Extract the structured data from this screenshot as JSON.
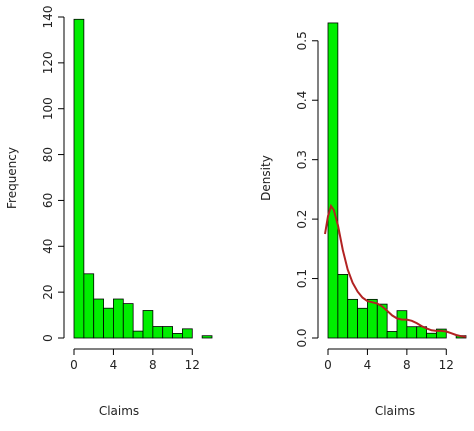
{
  "chart_data": [
    {
      "type": "bar",
      "xlabel": "Claims",
      "ylabel": "Frequency",
      "bin_width": 1,
      "bins": [
        {
          "x0": 0,
          "x1": 1,
          "value": 139
        },
        {
          "x0": 1,
          "x1": 2,
          "value": 28
        },
        {
          "x0": 2,
          "x1": 3,
          "value": 17
        },
        {
          "x0": 3,
          "x1": 4,
          "value": 13
        },
        {
          "x0": 4,
          "x1": 5,
          "value": 17
        },
        {
          "x0": 5,
          "x1": 6,
          "value": 15
        },
        {
          "x0": 6,
          "x1": 7,
          "value": 3
        },
        {
          "x0": 7,
          "x1": 8,
          "value": 12
        },
        {
          "x0": 8,
          "x1": 9,
          "value": 5
        },
        {
          "x0": 9,
          "x1": 10,
          "value": 5
        },
        {
          "x0": 10,
          "x1": 11,
          "value": 2
        },
        {
          "x0": 11,
          "x1": 12,
          "value": 4
        },
        {
          "x0": 12,
          "x1": 13,
          "value": 0
        },
        {
          "x0": 13,
          "x1": 14,
          "value": 1
        }
      ],
      "x_ticks": [
        0,
        4,
        8,
        12
      ],
      "y_ticks": [
        0,
        20,
        40,
        60,
        80,
        100,
        120,
        140
      ],
      "xlim": [
        0,
        14
      ],
      "ylim": [
        0,
        140
      ],
      "bar_color": "#00ee00",
      "bar_edge_color": "#000000"
    },
    {
      "type": "bar",
      "xlabel": "Claims",
      "ylabel": "Density",
      "bin_width": 1,
      "bins": [
        {
          "x0": 0,
          "x1": 1,
          "value": 0.53
        },
        {
          "x0": 1,
          "x1": 2,
          "value": 0.107
        },
        {
          "x0": 2,
          "x1": 3,
          "value": 0.065
        },
        {
          "x0": 3,
          "x1": 4,
          "value": 0.05
        },
        {
          "x0": 4,
          "x1": 5,
          "value": 0.065
        },
        {
          "x0": 5,
          "x1": 6,
          "value": 0.057
        },
        {
          "x0": 6,
          "x1": 7,
          "value": 0.011
        },
        {
          "x0": 7,
          "x1": 8,
          "value": 0.046
        },
        {
          "x0": 8,
          "x1": 9,
          "value": 0.019
        },
        {
          "x0": 9,
          "x1": 10,
          "value": 0.019
        },
        {
          "x0": 10,
          "x1": 11,
          "value": 0.008
        },
        {
          "x0": 11,
          "x1": 12,
          "value": 0.015
        },
        {
          "x0": 12,
          "x1": 13,
          "value": 0.0
        },
        {
          "x0": 13,
          "x1": 14,
          "value": 0.004
        }
      ],
      "density_curve": {
        "color": "#b22222",
        "x": [
          -0.3,
          0,
          0.3,
          0.6,
          1,
          1.5,
          2,
          2.5,
          3,
          3.5,
          4,
          4.5,
          5,
          5.5,
          6,
          6.5,
          7,
          7.5,
          8,
          8.5,
          9,
          9.5,
          10,
          10.5,
          11,
          11.5,
          12,
          12.5,
          13,
          13.5,
          14
        ],
        "y": [
          0.175,
          0.205,
          0.222,
          0.215,
          0.19,
          0.148,
          0.115,
          0.093,
          0.078,
          0.068,
          0.062,
          0.06,
          0.058,
          0.053,
          0.046,
          0.038,
          0.033,
          0.031,
          0.031,
          0.029,
          0.025,
          0.02,
          0.016,
          0.013,
          0.012,
          0.012,
          0.011,
          0.008,
          0.005,
          0.003,
          0.002
        ]
      },
      "x_ticks": [
        0,
        4,
        8,
        12
      ],
      "y_ticks": [
        0.0,
        0.1,
        0.2,
        0.3,
        0.4,
        0.5
      ],
      "y_tick_labels": [
        "0.0",
        "0.1",
        "0.2",
        "0.3",
        "0.4",
        "0.5"
      ],
      "xlim": [
        0,
        14
      ],
      "ylim": [
        0,
        0.54
      ],
      "bar_color": "#00ee00",
      "bar_edge_color": "#000000"
    }
  ]
}
